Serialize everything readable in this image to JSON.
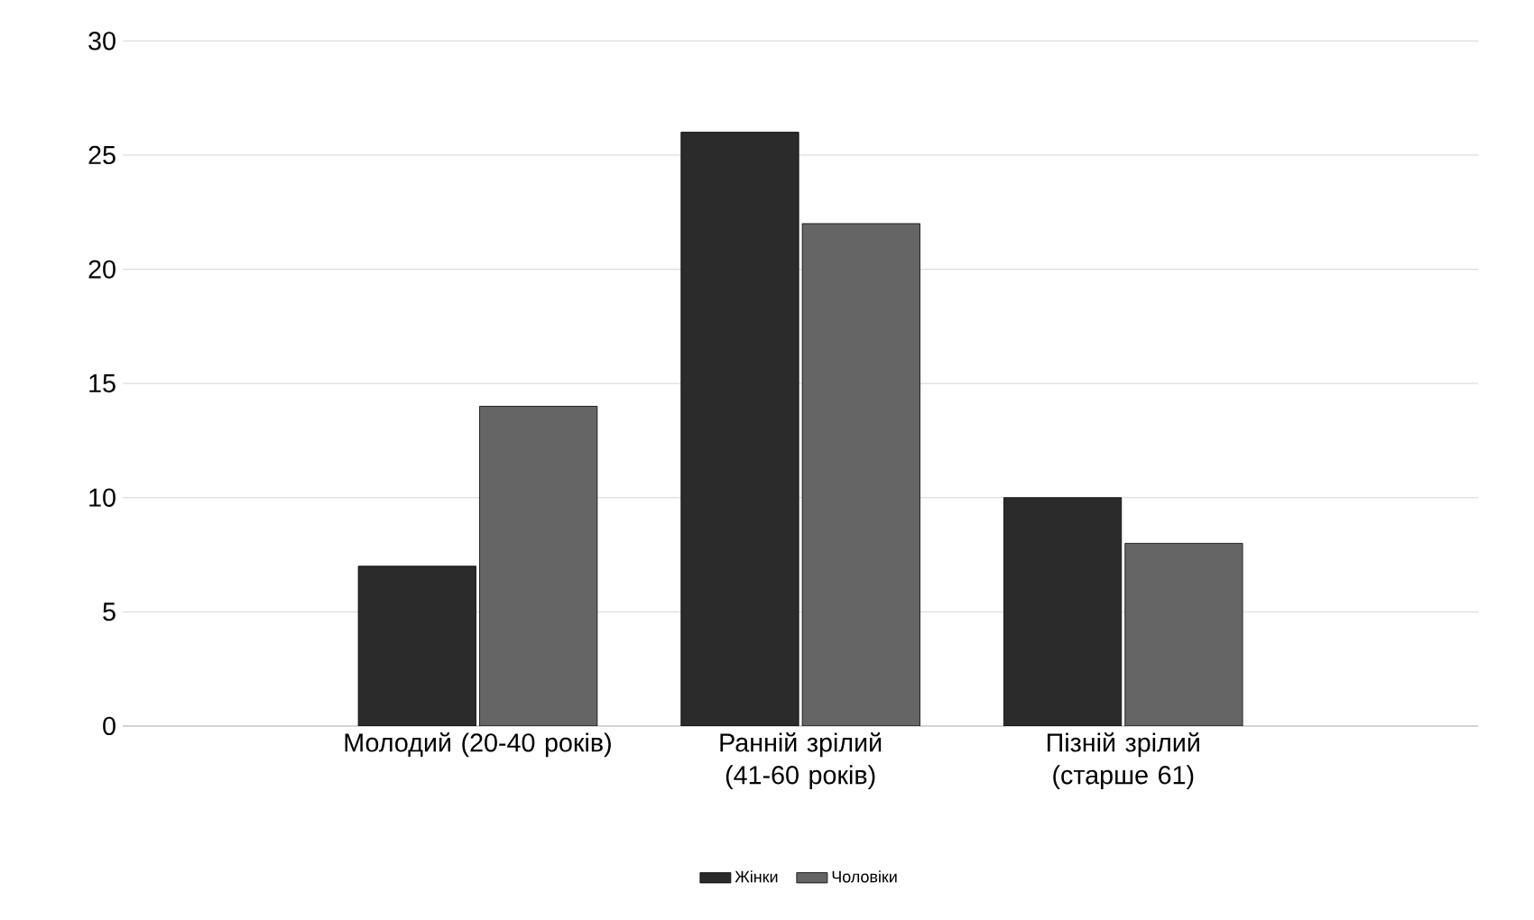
{
  "chart_data": {
    "type": "bar",
    "categories": [
      "Молодий (20-40 років)",
      "Ранній зрілий (41-60 років)",
      "Пізній зрілий (старше 61)"
    ],
    "series": [
      {
        "name": "Жінки",
        "color": "#2b2b2b",
        "values": [
          7,
          26,
          10
        ]
      },
      {
        "name": "Чоловіки",
        "color": "#656565",
        "values": [
          14,
          22,
          8
        ]
      }
    ],
    "ylim": [
      0,
      30
    ],
    "yticks": [
      0,
      5,
      10,
      15,
      20,
      25,
      30
    ],
    "grid": "y",
    "legend": "bottom"
  }
}
